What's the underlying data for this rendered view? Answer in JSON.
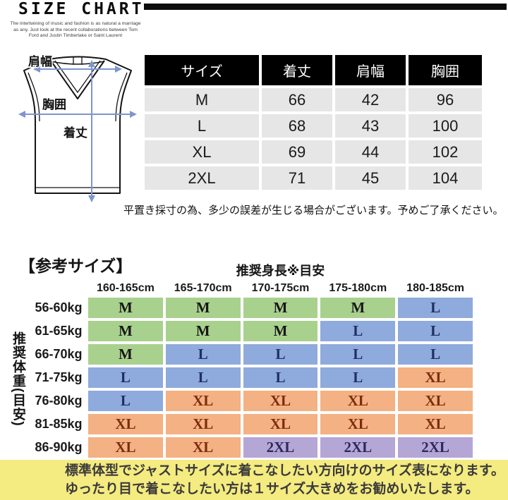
{
  "header": {
    "title": "SIZE CHART",
    "subtitle_lines": [
      "The intertwining of music and fashion is as natural a marriage",
      "as any. Just look at the recent collaborations between Tom",
      "Ford and Justin Timberlake or Saint Laurent"
    ]
  },
  "garment_diagram": {
    "shoulder_label": "肩幅",
    "chest_label": "胸囲",
    "length_label": "着丈",
    "arrow_color": "#7e96cc"
  },
  "size_table": {
    "headers": [
      "サイズ",
      "着丈",
      "肩幅",
      "胸囲"
    ],
    "rows": [
      [
        "M",
        "66",
        "42",
        "96"
      ],
      [
        "L",
        "68",
        "43",
        "100"
      ],
      [
        "XL",
        "69",
        "44",
        "102"
      ],
      [
        "2XL",
        "71",
        "45",
        "104"
      ]
    ],
    "header_bg": "#000000",
    "row_bg": "#e7e6e6"
  },
  "measurement_note": "平置き採寸の為、多少の誤差が生じる場合がございます。予めご了承ください。",
  "reference_section": {
    "heading": "【参考サイズ】",
    "height_axis_label": "推奨身長※目安",
    "weight_axis_label": "推奨体重(目安)",
    "height_columns": [
      "160-165cm",
      "165-170cm",
      "170-175cm",
      "175-180cm",
      "180-185cm"
    ],
    "rows": [
      {
        "weight": "56-60kg",
        "sizes": [
          "M",
          "M",
          "M",
          "M",
          "L"
        ]
      },
      {
        "weight": "61-65kg",
        "sizes": [
          "M",
          "M",
          "M",
          "L",
          "L"
        ]
      },
      {
        "weight": "66-70kg",
        "sizes": [
          "M",
          "L",
          "L",
          "L",
          "L"
        ]
      },
      {
        "weight": "71-75kg",
        "sizes": [
          "L",
          "L",
          "L",
          "L",
          "XL"
        ]
      },
      {
        "weight": "76-80kg",
        "sizes": [
          "L",
          "XL",
          "XL",
          "XL",
          "XL"
        ]
      },
      {
        "weight": "81-85kg",
        "sizes": [
          "XL",
          "XL",
          "XL",
          "XL",
          "XL"
        ]
      },
      {
        "weight": "86-90kg",
        "sizes": [
          "XL",
          "XL",
          "2XL",
          "2XL",
          "2XL"
        ]
      }
    ],
    "size_cell_colors": {
      "M": "#a9d18e",
      "L": "#8faadc",
      "XL": "#f4b183",
      "2XL": "#b4a7d6"
    },
    "size_text_colors": {
      "M": "#161616",
      "L": "#1f3060",
      "XL": "#7c2d0e",
      "2XL": "#2c2a5e"
    }
  },
  "footer_note": {
    "lines": [
      "標準体型でジャストサイズに着こなしたい方向けのサイズ表になります。",
      "ゆったり目で着こなしたい方は１サイズ大きめをお勧めいたします。"
    ],
    "bg_color": "#f4eb81"
  }
}
